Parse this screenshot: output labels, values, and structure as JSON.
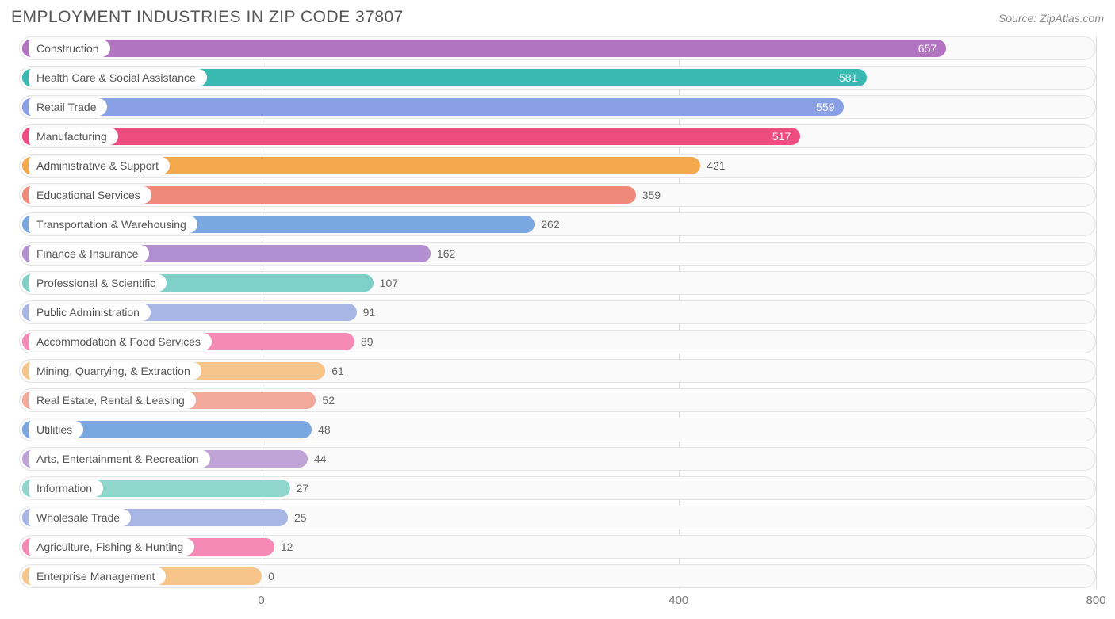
{
  "title": "EMPLOYMENT INDUSTRIES IN ZIP CODE 37807",
  "source_label": "Source:",
  "source_value": "ZipAtlas.com",
  "chart": {
    "type": "bar-horizontal",
    "xmin": 0,
    "xmax": 800,
    "ticks": [
      0,
      400,
      800
    ],
    "row_bg": "#fafafa",
    "row_border": "#e5e5e5",
    "grid_color": "#dddddd",
    "pill_bg": "#ffffff",
    "text_color": "#555555",
    "value_inside_color": "#ffffff",
    "value_outside_color": "#666666",
    "label_offset_pct": 22.5,
    "categories": [
      {
        "label": "Construction",
        "value": 657,
        "color": "#b273c0",
        "value_inside": true
      },
      {
        "label": "Health Care & Social Assistance",
        "value": 581,
        "color": "#3ab8b2",
        "value_inside": true
      },
      {
        "label": "Retail Trade",
        "value": 559,
        "color": "#8aa0e6",
        "value_inside": true
      },
      {
        "label": "Manufacturing",
        "value": 517,
        "color": "#ef4d82",
        "value_inside": true
      },
      {
        "label": "Administrative & Support",
        "value": 421,
        "color": "#f5a94d",
        "value_inside": false
      },
      {
        "label": "Educational Services",
        "value": 359,
        "color": "#ef8a7a",
        "value_inside": false
      },
      {
        "label": "Transportation & Warehousing",
        "value": 262,
        "color": "#7ba7e0",
        "value_inside": false
      },
      {
        "label": "Finance & Insurance",
        "value": 162,
        "color": "#b18fd0",
        "value_inside": false
      },
      {
        "label": "Professional & Scientific",
        "value": 107,
        "color": "#7fd0c8",
        "value_inside": false
      },
      {
        "label": "Public Administration",
        "value": 91,
        "color": "#a7b6e5",
        "value_inside": false
      },
      {
        "label": "Accommodation & Food Services",
        "value": 89,
        "color": "#f48ab5",
        "value_inside": false
      },
      {
        "label": "Mining, Quarrying, & Extraction",
        "value": 61,
        "color": "#f7c48a",
        "value_inside": false
      },
      {
        "label": "Real Estate, Rental & Leasing",
        "value": 52,
        "color": "#f2a99a",
        "value_inside": false
      },
      {
        "label": "Utilities",
        "value": 48,
        "color": "#7ba7e0",
        "value_inside": false
      },
      {
        "label": "Arts, Entertainment & Recreation",
        "value": 44,
        "color": "#c0a4d8",
        "value_inside": false
      },
      {
        "label": "Information",
        "value": 27,
        "color": "#8fd6cd",
        "value_inside": false
      },
      {
        "label": "Wholesale Trade",
        "value": 25,
        "color": "#a7b6e5",
        "value_inside": false
      },
      {
        "label": "Agriculture, Fishing & Hunting",
        "value": 12,
        "color": "#f48ab5",
        "value_inside": false
      },
      {
        "label": "Enterprise Management",
        "value": 0,
        "color": "#f7c48a",
        "value_inside": false
      }
    ]
  }
}
